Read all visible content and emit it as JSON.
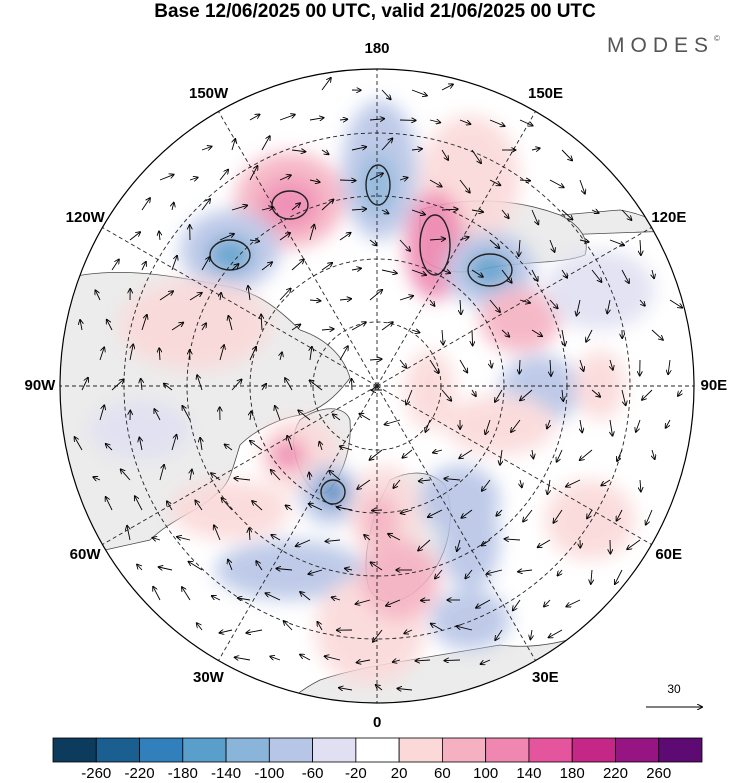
{
  "title": "Base 12/06/2025 00 UTC, valid 21/06/2025 00 UTC",
  "brand": "MODES",
  "brand_mark": "©",
  "longitude_labels": [
    {
      "text": "180",
      "deg": 180
    },
    {
      "text": "150E",
      "deg": 150
    },
    {
      "text": "120E",
      "deg": 120
    },
    {
      "text": "90E",
      "deg": 90
    },
    {
      "text": "60E",
      "deg": 60
    },
    {
      "text": "30E",
      "deg": 30
    },
    {
      "text": "0",
      "deg": 0
    },
    {
      "text": "30W",
      "deg": -30
    },
    {
      "text": "60W",
      "deg": -60
    },
    {
      "text": "90W",
      "deg": -90
    },
    {
      "text": "120W",
      "deg": -120
    },
    {
      "text": "150W",
      "deg": -150
    }
  ],
  "wind_reference": {
    "value": "30"
  },
  "colorbar": {
    "colors": [
      "#0d3b5e",
      "#1a5f8f",
      "#3180bb",
      "#5a9fcc",
      "#8ab4da",
      "#b7c5e6",
      "#e0e0f2",
      "#ffffff",
      "#fbd9d9",
      "#f5b1c1",
      "#ef87b0",
      "#e5559e",
      "#c42785",
      "#961583",
      "#5d0a72"
    ],
    "ticks": [
      "-260",
      "-220",
      "-180",
      "-140",
      "-100",
      "-60",
      "-20",
      "20",
      "60",
      "100",
      "140",
      "180",
      "220",
      "260"
    ]
  },
  "colors": {
    "land": "#ececec",
    "ocean": "#ffffff",
    "coast": "#4a4a4a",
    "grid": "#222222"
  }
}
